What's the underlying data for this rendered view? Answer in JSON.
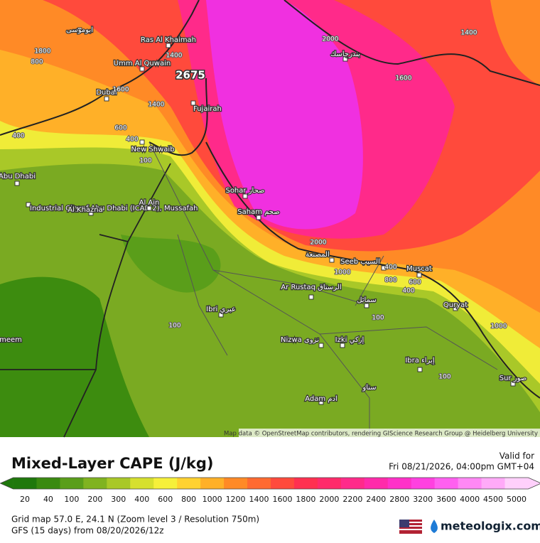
{
  "map": {
    "places": [
      "ابوموسى",
      "Ras Al Khaimah",
      "Umm Al Quwain",
      "Dubai",
      "Fujairah",
      "New Shwaib",
      "Abu Dhabi",
      "Industrial City of Abu Dhabi (ICAD 2), Mussafah",
      "Al Khazna",
      "Al Ain",
      "Sohar صحار",
      "Saham صحم",
      "المصنعة",
      "Seeb السيب",
      "Muscat",
      "Ar Rustaq الرستاق",
      "سمائل",
      "Ibri عبري",
      "Nizwa نزوى",
      "Izki إزكي",
      "Ibra إبراء",
      "سناو",
      "Adam ادم",
      "Sur صور",
      "Quryat",
      "بندرجاسك",
      "meem"
    ],
    "max_label": "2675",
    "contour_labels": [
      "1800",
      "800",
      "1400",
      "1600",
      "1400",
      "400",
      "600",
      "400",
      "100",
      "2000",
      "1400",
      "1600",
      "2000",
      "1000",
      "400",
      "800",
      "600",
      "400",
      "100",
      "100",
      "100",
      "1000"
    ],
    "attribution": "Map data © OpenStreetMap contributors, rendering GIScience Research Group @ Heidelberg University"
  },
  "header": {
    "title": "Mixed-Layer CAPE (J/kg)",
    "valid_label": "Valid for",
    "valid_time": "Fri 08/21/2026, 04:00pm GMT+04"
  },
  "legend": {
    "items": [
      {
        "label": "20",
        "color": "#1f780c"
      },
      {
        "label": "40",
        "color": "#3a8a10"
      },
      {
        "label": "100",
        "color": "#5a9e1a"
      },
      {
        "label": "200",
        "color": "#80b320"
      },
      {
        "label": "300",
        "color": "#a9c828"
      },
      {
        "label": "400",
        "color": "#d6e02e"
      },
      {
        "label": "600",
        "color": "#f6f03a"
      },
      {
        "label": "800",
        "color": "#ffd230"
      },
      {
        "label": "1000",
        "color": "#ffb028"
      },
      {
        "label": "1200",
        "color": "#ff8a26"
      },
      {
        "label": "1400",
        "color": "#ff6a30"
      },
      {
        "label": "1600",
        "color": "#ff4a3c"
      },
      {
        "label": "1800",
        "color": "#ff3050"
      },
      {
        "label": "2000",
        "color": "#ff2a6a"
      },
      {
        "label": "2200",
        "color": "#ff2a8a"
      },
      {
        "label": "2400",
        "color": "#ff2aaa"
      },
      {
        "label": "2800",
        "color": "#ff30c8"
      },
      {
        "label": "3200",
        "color": "#ff40e0"
      },
      {
        "label": "3600",
        "color": "#ff60f0"
      },
      {
        "label": "4000",
        "color": "#ff88f5"
      },
      {
        "label": "4500",
        "color": "#ffaaf8"
      },
      {
        "label": "5000",
        "color": "#ffd0fb"
      }
    ]
  },
  "footer": {
    "grid": "Grid map 57.0 E, 24.1 N (Zoom level 3 / Resolution 750m)",
    "model": "GFS (15 days) from 08/20/2026/12z",
    "brand": "meteologix.com"
  }
}
